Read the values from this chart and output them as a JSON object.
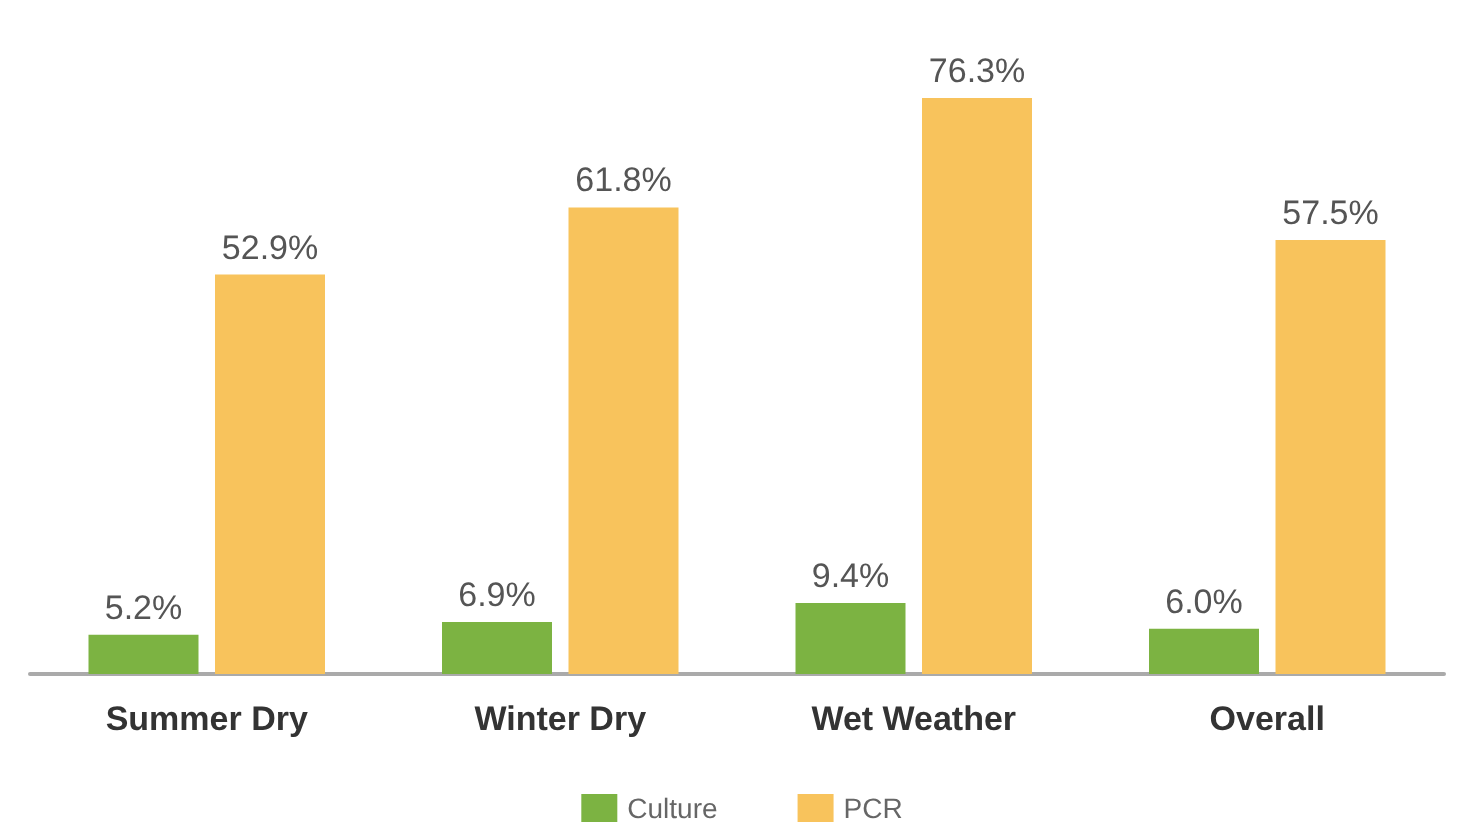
{
  "chart_data": {
    "type": "bar",
    "categories": [
      "Summer Dry",
      "Winter Dry",
      "Wet Weather",
      "Overall"
    ],
    "series": [
      {
        "name": "Culture",
        "color": "#7cb342",
        "values": [
          5.2,
          6.9,
          9.4,
          6.0
        ],
        "value_labels": [
          "5.2%",
          "6.9%",
          "9.4%",
          "6.0%"
        ]
      },
      {
        "name": "PCR",
        "color": "#f8c35c",
        "values": [
          52.9,
          61.8,
          76.3,
          57.5
        ],
        "value_labels": [
          "52.9%",
          "61.8%",
          "76.3%",
          "57.5%"
        ]
      }
    ],
    "legend": "bottom",
    "grid": false
  }
}
